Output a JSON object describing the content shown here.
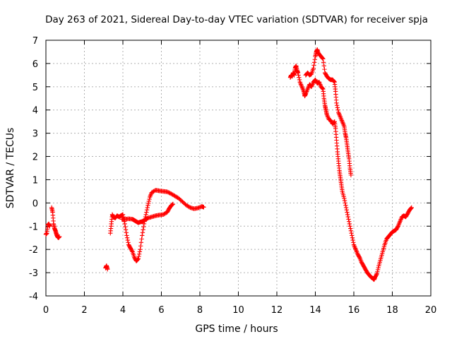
{
  "chart_data": {
    "type": "scatter",
    "title": "Day 263 of 2021, Sidereal Day-to-day VTEC variation (SDTVAR) for receiver spja",
    "xlabel": "GPS time / hours",
    "ylabel": "SDTVAR / TECUs",
    "xlim": [
      0,
      20
    ],
    "ylim": [
      -4,
      7
    ],
    "grid": true,
    "marker": "+",
    "colors": {
      "series": "#ff0000",
      "grid": "#b0b0b0",
      "axis": "#000000"
    },
    "x_tick_labels": [
      "0",
      "2",
      "4",
      "6",
      "8",
      "10",
      "12",
      "14",
      "16",
      "18",
      "20"
    ],
    "y_tick_labels": [
      "-4",
      "-3",
      "-2",
      "-1",
      "0",
      "1",
      "2",
      "3",
      "4",
      "5",
      "6",
      "7"
    ],
    "series": [
      {
        "name": "SDTVAR",
        "segments": [
          [
            [
              0.0,
              -1.35
            ],
            [
              0.05,
              -1.3
            ],
            [
              0.1,
              -0.95
            ],
            [
              0.15,
              -0.9
            ],
            [
              0.2,
              -1.0
            ]
          ],
          [
            [
              0.3,
              -0.2
            ],
            [
              0.35,
              -0.4
            ],
            [
              0.4,
              -0.9
            ],
            [
              0.45,
              -1.1
            ],
            [
              0.5,
              -1.2
            ],
            [
              0.55,
              -1.35
            ],
            [
              0.6,
              -1.45
            ],
            [
              0.65,
              -1.5
            ],
            [
              0.7,
              -1.45
            ]
          ],
          [
            [
              3.1,
              -2.8
            ],
            [
              3.15,
              -2.7
            ],
            [
              3.2,
              -2.85
            ]
          ],
          [
            [
              3.35,
              -1.3
            ],
            [
              3.4,
              -0.9
            ],
            [
              3.45,
              -0.5
            ],
            [
              3.5,
              -0.6
            ],
            [
              3.6,
              -0.65
            ],
            [
              3.7,
              -0.55
            ],
            [
              3.8,
              -0.6
            ],
            [
              3.9,
              -0.55
            ],
            [
              4.0,
              -0.5
            ],
            [
              4.1,
              -0.9
            ],
            [
              4.2,
              -1.4
            ],
            [
              4.3,
              -1.8
            ],
            [
              4.4,
              -1.95
            ],
            [
              4.5,
              -2.1
            ],
            [
              4.6,
              -2.35
            ],
            [
              4.7,
              -2.5
            ],
            [
              4.8,
              -2.4
            ],
            [
              4.9,
              -2.0
            ],
            [
              5.0,
              -1.4
            ],
            [
              5.1,
              -0.9
            ],
            [
              5.2,
              -0.5
            ],
            [
              5.3,
              -0.1
            ],
            [
              5.4,
              0.25
            ],
            [
              5.5,
              0.45
            ],
            [
              5.7,
              0.55
            ],
            [
              5.9,
              0.52
            ],
            [
              6.1,
              0.5
            ],
            [
              6.3,
              0.48
            ],
            [
              6.5,
              0.4
            ],
            [
              6.7,
              0.3
            ],
            [
              6.9,
              0.2
            ],
            [
              7.1,
              0.05
            ],
            [
              7.3,
              -0.1
            ],
            [
              7.5,
              -0.2
            ],
            [
              7.7,
              -0.25
            ],
            [
              7.9,
              -0.22
            ],
            [
              8.1,
              -0.15
            ],
            [
              8.2,
              -0.18
            ]
          ],
          [
            [
              3.95,
              -0.7
            ],
            [
              4.1,
              -0.7
            ],
            [
              4.3,
              -0.68
            ],
            [
              4.5,
              -0.7
            ],
            [
              4.6,
              -0.75
            ],
            [
              4.7,
              -0.8
            ],
            [
              4.8,
              -0.85
            ],
            [
              4.9,
              -0.82
            ],
            [
              5.0,
              -0.8
            ],
            [
              5.1,
              -0.75
            ],
            [
              5.2,
              -0.7
            ],
            [
              5.3,
              -0.65
            ],
            [
              5.5,
              -0.6
            ],
            [
              5.7,
              -0.55
            ],
            [
              5.9,
              -0.52
            ],
            [
              6.1,
              -0.5
            ],
            [
              6.3,
              -0.4
            ],
            [
              6.4,
              -0.25
            ],
            [
              6.5,
              -0.12
            ],
            [
              6.6,
              -0.05
            ]
          ],
          [
            [
              12.7,
              5.4
            ],
            [
              12.75,
              5.5
            ],
            [
              12.8,
              5.45
            ],
            [
              12.85,
              5.6
            ],
            [
              12.9,
              5.5
            ],
            [
              12.95,
              5.8
            ],
            [
              13.0,
              5.9
            ],
            [
              13.05,
              5.7
            ],
            [
              13.1,
              5.6
            ],
            [
              13.2,
              5.2
            ],
            [
              13.3,
              5.0
            ],
            [
              13.4,
              4.8
            ],
            [
              13.45,
              4.6
            ],
            [
              13.5,
              4.7
            ],
            [
              13.6,
              4.9
            ],
            [
              13.7,
              5.1
            ],
            [
              13.8,
              5.0
            ],
            [
              13.9,
              5.2
            ],
            [
              14.0,
              5.3
            ],
            [
              14.1,
              5.15
            ],
            [
              14.2,
              5.2
            ],
            [
              14.3,
              5.0
            ],
            [
              14.4,
              4.9
            ],
            [
              14.45,
              4.5
            ],
            [
              14.5,
              4.2
            ],
            [
              14.55,
              4.0
            ],
            [
              14.6,
              3.8
            ],
            [
              14.7,
              3.6
            ],
            [
              14.8,
              3.55
            ],
            [
              14.9,
              3.4
            ],
            [
              15.0,
              3.5
            ],
            [
              15.05,
              3.2
            ],
            [
              15.1,
              2.7
            ],
            [
              15.15,
              2.2
            ],
            [
              15.2,
              1.8
            ],
            [
              15.25,
              1.4
            ],
            [
              15.3,
              1.1
            ],
            [
              15.35,
              0.8
            ],
            [
              15.4,
              0.5
            ],
            [
              15.5,
              0.2
            ],
            [
              15.6,
              -0.2
            ],
            [
              15.7,
              -0.6
            ],
            [
              15.8,
              -1.0
            ],
            [
              15.9,
              -1.4
            ],
            [
              16.0,
              -1.8
            ],
            [
              16.1,
              -2.0
            ],
            [
              16.2,
              -2.2
            ],
            [
              16.3,
              -2.35
            ],
            [
              16.4,
              -2.55
            ],
            [
              16.5,
              -2.7
            ],
            [
              16.6,
              -2.85
            ],
            [
              16.7,
              -3.0
            ],
            [
              16.8,
              -3.1
            ],
            [
              16.9,
              -3.2
            ],
            [
              17.0,
              -3.25
            ],
            [
              17.05,
              -3.3
            ],
            [
              17.1,
              -3.2
            ],
            [
              17.2,
              -3.05
            ],
            [
              17.3,
              -2.7
            ],
            [
              17.4,
              -2.4
            ],
            [
              17.5,
              -2.1
            ],
            [
              17.6,
              -1.8
            ],
            [
              17.7,
              -1.55
            ],
            [
              17.8,
              -1.45
            ],
            [
              17.9,
              -1.35
            ],
            [
              18.0,
              -1.25
            ],
            [
              18.1,
              -1.2
            ],
            [
              18.2,
              -1.15
            ],
            [
              18.3,
              -1.0
            ],
            [
              18.4,
              -0.8
            ],
            [
              18.5,
              -0.6
            ],
            [
              18.6,
              -0.55
            ],
            [
              18.7,
              -0.6
            ],
            [
              18.8,
              -0.45
            ],
            [
              18.9,
              -0.3
            ],
            [
              19.0,
              -0.2
            ]
          ],
          [
            [
              13.5,
              5.5
            ],
            [
              13.6,
              5.6
            ],
            [
              13.7,
              5.5
            ],
            [
              13.8,
              5.55
            ],
            [
              13.9,
              5.8
            ],
            [
              14.0,
              6.3
            ],
            [
              14.05,
              6.5
            ],
            [
              14.1,
              6.6
            ],
            [
              14.15,
              6.45
            ],
            [
              14.2,
              6.4
            ],
            [
              14.3,
              6.3
            ],
            [
              14.4,
              6.2
            ],
            [
              14.5,
              5.6
            ],
            [
              14.6,
              5.45
            ],
            [
              14.7,
              5.35
            ],
            [
              14.8,
              5.3
            ],
            [
              14.9,
              5.3
            ],
            [
              15.0,
              5.2
            ],
            [
              15.05,
              4.8
            ],
            [
              15.1,
              4.3
            ],
            [
              15.2,
              3.9
            ],
            [
              15.3,
              3.7
            ],
            [
              15.4,
              3.5
            ],
            [
              15.5,
              3.3
            ],
            [
              15.55,
              3.0
            ],
            [
              15.6,
              2.8
            ],
            [
              15.65,
              2.5
            ],
            [
              15.7,
              2.2
            ],
            [
              15.75,
              1.9
            ],
            [
              15.8,
              1.5
            ],
            [
              15.85,
              1.2
            ]
          ]
        ]
      }
    ]
  }
}
